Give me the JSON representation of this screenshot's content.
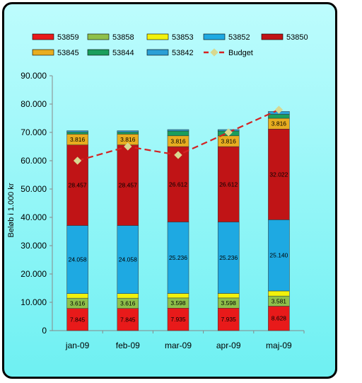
{
  "chart_data": {
    "type": "bar",
    "stacked": true,
    "categories": [
      "jan-09",
      "feb-09",
      "mar-09",
      "apr-09",
      "maj-09"
    ],
    "ylabel": "Beløb i 1.000 kr",
    "ylim": [
      0,
      90000
    ],
    "yticks": [
      "0",
      "10.000",
      "20.000",
      "30.000",
      "40.000",
      "50.000",
      "60.000",
      "70.000",
      "80.000",
      "90.000"
    ],
    "legend_position": "top",
    "series": [
      {
        "name": "53859",
        "color": "#e81a1a",
        "values": [
          7845,
          7845,
          7935,
          7935,
          8628
        ],
        "labels": [
          "7.845",
          "7.845",
          "7.935",
          "7.935",
          "8.628"
        ]
      },
      {
        "name": "53858",
        "color": "#8fc04a",
        "values": [
          3616,
          3616,
          3598,
          3598,
          3581
        ],
        "labels": [
          "3.616",
          "3.616",
          "3.598",
          "3.598",
          "3.581"
        ]
      },
      {
        "name": "53853",
        "color": "#f2f20c",
        "values": [
          1600,
          1600,
          1600,
          1600,
          1800
        ],
        "labels": null
      },
      {
        "name": "53852",
        "color": "#1ea9e2",
        "values": [
          24058,
          24058,
          25236,
          25236,
          25140
        ],
        "labels": [
          "24.058",
          "24.058",
          "25.236",
          "25.236",
          "25.140"
        ]
      },
      {
        "name": "53850",
        "color": "#c01416",
        "values": [
          28457,
          28457,
          26612,
          26612,
          32022
        ],
        "labels": [
          "28.457",
          "28.457",
          "26.612",
          "26.612",
          "32.022"
        ]
      },
      {
        "name": "53845",
        "color": "#e8ad20",
        "values": [
          3816,
          3816,
          3816,
          3816,
          3816
        ],
        "labels": [
          "3.816",
          "3.816",
          "3.816",
          "3.816",
          "3.816"
        ]
      },
      {
        "name": "53844",
        "color": "#1a9e5c",
        "values": [
          700,
          700,
          1700,
          1700,
          1400
        ],
        "labels": null
      },
      {
        "name": "53842",
        "color": "#2a9fd6",
        "values": [
          500,
          500,
          500,
          500,
          1000
        ],
        "labels": null
      }
    ],
    "line_series": {
      "name": "Budget",
      "color": "#d42222",
      "marker_color": "#d8d890",
      "values": [
        60000,
        65000,
        62000,
        70000,
        78000
      ]
    }
  }
}
